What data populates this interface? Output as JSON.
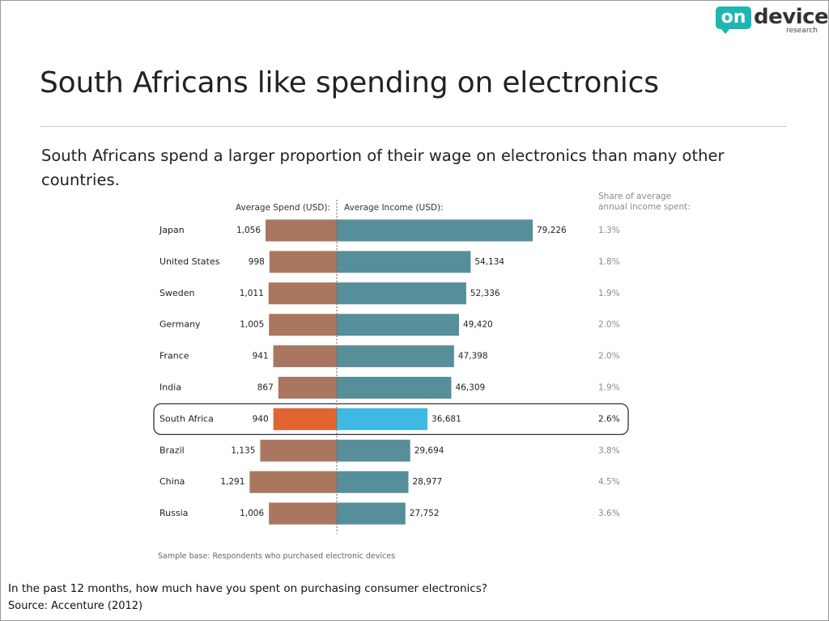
{
  "title": "South Africans like spending on electronics",
  "subtitle": "South Africans spend a larger proportion of their wage on electronics than many other countries.",
  "logo": {
    "on": "on",
    "device": "device",
    "research": "research",
    "colors": {
      "badge": "#1fb6b1",
      "text": "#333333"
    }
  },
  "footer": {
    "question": "In the past 12 months, how much have you spent on purchasing consumer electronics?",
    "source": "Source: Accenture (2012)"
  },
  "chart_data": {
    "type": "bar",
    "layout": "butterfly",
    "headers": {
      "spend": "Average Spend (USD):",
      "income": "Average Income (USD):",
      "share_line1": "Share of average",
      "share_line2": "annual income spent:"
    },
    "categories": [
      "Japan",
      "United States",
      "Sweden",
      "Germany",
      "France",
      "India",
      "South Africa",
      "Brazil",
      "China",
      "Russia"
    ],
    "series": [
      {
        "name": "Average Spend (USD):",
        "values": [
          1056,
          998,
          1011,
          1005,
          941,
          867,
          940,
          1135,
          1291,
          1006
        ],
        "labels": [
          "1,056",
          "998",
          "1,011",
          "1,005",
          "941",
          "867",
          "940",
          "1,135",
          "1,291",
          "1,006"
        ]
      },
      {
        "name": "Average Income (USD):",
        "values": [
          79226,
          54134,
          52336,
          49420,
          47398,
          46309,
          36681,
          29694,
          28977,
          27752
        ],
        "labels": [
          "79,226",
          "54,134",
          "52,336",
          "49,420",
          "47,398",
          "46,309",
          "36,681",
          "29,694",
          "28,977",
          "27,752"
        ]
      }
    ],
    "share": [
      "1.3%",
      "1.8%",
      "1.9%",
      "2.0%",
      "2.0%",
      "1.9%",
      "2.6%",
      "3.8%",
      "4.5%",
      "3.6%"
    ],
    "highlight": "South Africa",
    "note": "Sample base: Respondents who purchased electronic devices",
    "colors": {
      "spend": "#a97660",
      "income": "#568e99",
      "spend_highlight": "#e06532",
      "income_highlight": "#3fb9e3"
    }
  }
}
